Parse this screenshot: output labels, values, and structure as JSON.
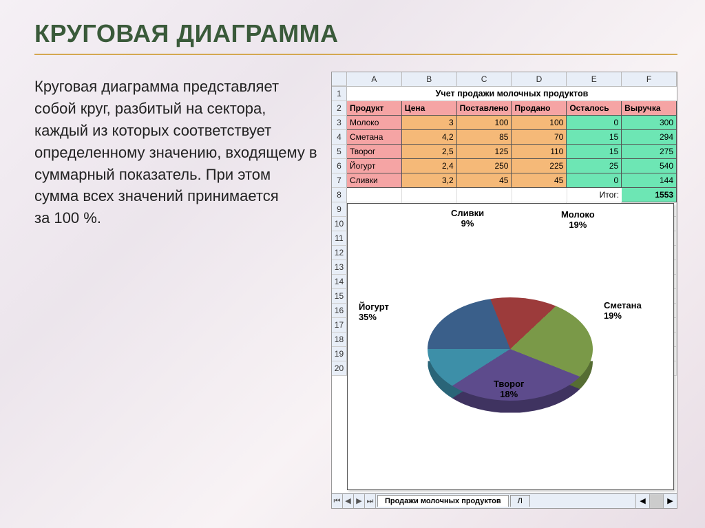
{
  "title": "КРУГОВАЯ ДИАГРАММА",
  "description_p1": "Круговая диаграмма представляет собой круг, разбитый на сектора, каждый из которых соответствует определенному значению, входящему в суммарный показатель. При этом сумма всех значений принимается",
  "description_p2": "за 100 %.",
  "spreadsheet": {
    "columns_letters": [
      "A",
      "B",
      "C",
      "D",
      "E",
      "F"
    ],
    "row_numbers": [
      "1",
      "2",
      "3",
      "4",
      "5",
      "6",
      "7",
      "8",
      "9",
      "10",
      "11",
      "12",
      "13",
      "14",
      "15",
      "16",
      "17",
      "18",
      "19",
      "20"
    ],
    "title": "Учет продажи молочных продуктов",
    "headers": [
      "Продукт",
      "Цена",
      "Поставлено",
      "Продано",
      "Осталось",
      "Выручка"
    ],
    "header_bg": "#f5a4a4",
    "col_a_bg": "#f5a4a4",
    "bcd_bg": "#f5b978",
    "ef_bg": "#6de6b4",
    "border_color": "#000000",
    "rows": [
      {
        "a": "Молоко",
        "b": "3",
        "c": "100",
        "d": "100",
        "e": "0",
        "f": "300"
      },
      {
        "a": "Сметана",
        "b": "4,2",
        "c": "85",
        "d": "70",
        "e": "15",
        "f": "294"
      },
      {
        "a": "Творог",
        "b": "2,5",
        "c": "125",
        "d": "110",
        "e": "15",
        "f": "275"
      },
      {
        "a": "Йогурт",
        "b": "2,4",
        "c": "250",
        "d": "225",
        "e": "25",
        "f": "540"
      },
      {
        "a": "Сливки",
        "b": "3,2",
        "c": "45",
        "d": "45",
        "e": "0",
        "f": "144"
      }
    ],
    "total_label": "Итог:",
    "total_value": "1553",
    "active_tab": "Продажи молочных продуктов",
    "inactive_tab": "Л"
  },
  "chart": {
    "type": "pie",
    "slices": [
      {
        "label": "Молоко",
        "pct": "19%",
        "value": 19,
        "color": "#3a5f8a",
        "dark": "#2a4568"
      },
      {
        "label": "Сметана",
        "pct": "19%",
        "value": 19,
        "color": "#9c3b3b",
        "dark": "#6e2a2a"
      },
      {
        "label": "Творог",
        "pct": "18%",
        "value": 18,
        "color": "#7a9948",
        "dark": "#566d33"
      },
      {
        "label": "Йогурт",
        "pct": "35%",
        "value": 35,
        "color": "#5d4b8c",
        "dark": "#3f3360"
      },
      {
        "label": "Сливки",
        "pct": "9%",
        "value": 9,
        "color": "#3d8fa8",
        "dark": "#2a6578"
      }
    ],
    "background": "#ffffff",
    "label_fontsize": 13,
    "label_fontweight": "bold"
  }
}
